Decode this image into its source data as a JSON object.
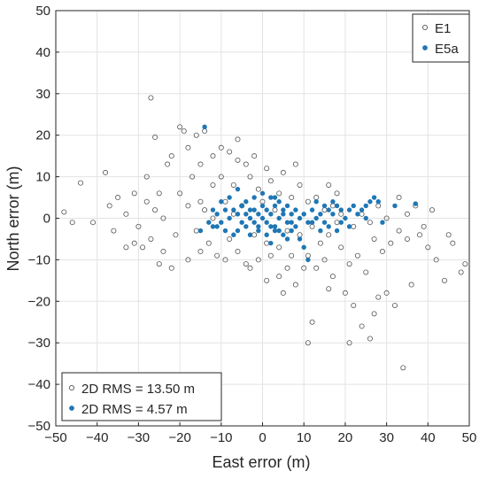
{
  "chart_data": {
    "type": "scatter",
    "title": "",
    "xlabel": "East error (m)",
    "ylabel": "North error (m)",
    "xlim": [
      -50,
      50
    ],
    "ylim": [
      -50,
      50
    ],
    "xticks": [
      -50,
      -40,
      -30,
      -20,
      -10,
      0,
      10,
      20,
      30,
      40,
      50
    ],
    "yticks": [
      -50,
      -40,
      -30,
      -20,
      -10,
      0,
      10,
      20,
      30,
      40,
      50
    ],
    "grid": true,
    "legend_position": "top-right",
    "rms_legend_position": "bottom-left",
    "series": [
      {
        "name": "E1",
        "marker": "open-circle",
        "color": "#555555",
        "rms_label": "2D RMS = 13.50 m",
        "points": [
          [
            -27,
            29
          ],
          [
            -26,
            19.5
          ],
          [
            -48,
            1.5
          ],
          [
            -44,
            8.5
          ],
          [
            -41,
            -1
          ],
          [
            -46,
            -1
          ],
          [
            -37,
            3
          ],
          [
            -38,
            11
          ],
          [
            -36,
            -3
          ],
          [
            -31,
            -6
          ],
          [
            -29,
            -7
          ],
          [
            -25,
            -11
          ],
          [
            -22,
            -12
          ],
          [
            -24,
            -8
          ],
          [
            -31,
            6
          ],
          [
            -28,
            4
          ],
          [
            -26,
            2
          ],
          [
            -33,
            1
          ],
          [
            -20,
            22
          ],
          [
            -19,
            21
          ],
          [
            -16,
            20
          ],
          [
            -14,
            21
          ],
          [
            -18,
            17
          ],
          [
            -22,
            15
          ],
          [
            -23,
            13
          ],
          [
            -15,
            13
          ],
          [
            -12,
            15
          ],
          [
            -10,
            17
          ],
          [
            -8,
            16
          ],
          [
            -6,
            14
          ],
          [
            -4,
            13
          ],
          [
            -17,
            10
          ],
          [
            -12,
            8
          ],
          [
            -20,
            6
          ],
          [
            -18,
            3
          ],
          [
            -15,
            4
          ],
          [
            -10,
            10
          ],
          [
            -7,
            8
          ],
          [
            -3,
            10
          ],
          [
            -1,
            7
          ],
          [
            2,
            9
          ],
          [
            4,
            6
          ],
          [
            7,
            5
          ],
          [
            9,
            8
          ],
          [
            11,
            4
          ],
          [
            13,
            5
          ],
          [
            15,
            2
          ],
          [
            17,
            3
          ],
          [
            19,
            1
          ],
          [
            -13,
            -6
          ],
          [
            -11,
            -9
          ],
          [
            -8,
            -5
          ],
          [
            -6,
            -8
          ],
          [
            -4,
            -11
          ],
          [
            -1,
            -10
          ],
          [
            2,
            -9
          ],
          [
            4,
            -14
          ],
          [
            6,
            -12
          ],
          [
            8,
            -16
          ],
          [
            11,
            -9
          ],
          [
            13,
            -12
          ],
          [
            15,
            -10
          ],
          [
            17,
            -14
          ],
          [
            19,
            -7
          ],
          [
            21,
            -11
          ],
          [
            23,
            -9
          ],
          [
            25,
            -13
          ],
          [
            27,
            -5
          ],
          [
            29,
            -8
          ],
          [
            31,
            -6
          ],
          [
            33,
            -3
          ],
          [
            35,
            -5
          ],
          [
            20,
            -18
          ],
          [
            22,
            -21
          ],
          [
            24,
            -26
          ],
          [
            27,
            -23
          ],
          [
            30,
            -18
          ],
          [
            26,
            -29
          ],
          [
            21,
            -30
          ],
          [
            34,
            -36
          ],
          [
            12,
            -25
          ],
          [
            11,
            -30
          ],
          [
            16,
            -17
          ],
          [
            39,
            -2
          ],
          [
            42,
            -10
          ],
          [
            45,
            -4
          ],
          [
            46,
            -6
          ],
          [
            48,
            -13
          ],
          [
            49,
            -11
          ],
          [
            44,
            -15
          ],
          [
            37,
            3
          ],
          [
            41,
            2
          ],
          [
            32,
            -21
          ],
          [
            36,
            -16
          ],
          [
            28,
            -19
          ],
          [
            -3,
            -12
          ],
          [
            5,
            -18
          ],
          [
            1,
            -15
          ],
          [
            -9,
            -10
          ],
          [
            -16,
            -3
          ],
          [
            -14,
            2
          ],
          [
            -21,
            -4
          ],
          [
            -24,
            0
          ],
          [
            -9,
            4
          ],
          [
            -5,
            3
          ],
          [
            0,
            4
          ],
          [
            3,
            2
          ],
          [
            6,
            -3
          ],
          [
            9,
            -4
          ],
          [
            12,
            -2
          ],
          [
            14,
            -6
          ],
          [
            16,
            -4
          ],
          [
            18,
            -1
          ],
          [
            22,
            -2
          ],
          [
            24,
            1
          ],
          [
            26,
            -1
          ],
          [
            -12,
            0
          ],
          [
            -7,
            1
          ],
          [
            -2,
            -4
          ],
          [
            1,
            -6
          ],
          [
            4,
            -7
          ],
          [
            7,
            -9
          ],
          [
            10,
            -12
          ],
          [
            -18,
            -10
          ],
          [
            -15,
            -8
          ],
          [
            -27,
            -5
          ],
          [
            -30,
            -2
          ],
          [
            -33,
            -7
          ],
          [
            -35,
            5
          ],
          [
            -28,
            10
          ],
          [
            -25,
            6
          ],
          [
            28,
            3
          ],
          [
            30,
            0
          ],
          [
            33,
            5
          ],
          [
            35,
            1
          ],
          [
            38,
            -4
          ],
          [
            40,
            -7
          ],
          [
            18,
            6
          ],
          [
            16,
            8
          ],
          [
            -6,
            19
          ],
          [
            -2,
            15
          ],
          [
            1,
            12
          ],
          [
            5,
            11
          ],
          [
            8,
            13
          ]
        ]
      },
      {
        "name": "E5a",
        "marker": "filled-dot",
        "color": "#1f77b4",
        "rms_label": "2D RMS = 4.57 m",
        "points": [
          [
            -14,
            22
          ],
          [
            -6,
            7
          ],
          [
            -10,
            4
          ],
          [
            -8,
            5
          ],
          [
            -12,
            2
          ],
          [
            -15,
            -3
          ],
          [
            -11,
            -2
          ],
          [
            -9,
            -3
          ],
          [
            -13,
            -1
          ],
          [
            -7,
            -4
          ],
          [
            -6,
            1
          ],
          [
            -5,
            3
          ],
          [
            -4,
            -2
          ],
          [
            -3,
            2
          ],
          [
            -2,
            -1
          ],
          [
            -1,
            1
          ],
          [
            0,
            0
          ],
          [
            1,
            -1
          ],
          [
            2,
            1
          ],
          [
            3,
            -2
          ],
          [
            4,
            0
          ],
          [
            5,
            2
          ],
          [
            6,
            -1
          ],
          [
            7,
            1
          ],
          [
            8,
            -2
          ],
          [
            9,
            0
          ],
          [
            10,
            1
          ],
          [
            11,
            -1
          ],
          [
            12,
            2
          ],
          [
            13,
            0
          ],
          [
            14,
            1
          ],
          [
            15,
            3
          ],
          [
            16,
            2
          ],
          [
            17,
            1
          ],
          [
            18,
            3
          ],
          [
            19,
            2
          ],
          [
            20,
            0
          ],
          [
            21,
            2
          ],
          [
            22,
            3
          ],
          [
            23,
            1
          ],
          [
            24,
            2
          ],
          [
            25,
            0
          ],
          [
            26,
            4
          ],
          [
            27,
            5
          ],
          [
            25,
            3
          ],
          [
            28,
            4
          ],
          [
            29,
            -1
          ],
          [
            32,
            3
          ],
          [
            37,
            3.5
          ],
          [
            -2,
            5
          ],
          [
            0,
            6
          ],
          [
            2,
            5
          ],
          [
            4,
            4
          ],
          [
            -4,
            4
          ],
          [
            -3,
            -4
          ],
          [
            -1,
            -3
          ],
          [
            1,
            -4
          ],
          [
            3,
            -3
          ],
          [
            5,
            -4
          ],
          [
            7,
            -3
          ],
          [
            9,
            -5
          ],
          [
            11,
            -10
          ],
          [
            10,
            -7
          ],
          [
            2,
            -6
          ],
          [
            -8,
            0
          ],
          [
            -9,
            2
          ],
          [
            -10,
            -1
          ],
          [
            -11,
            1
          ],
          [
            -12,
            -2
          ],
          [
            -5,
            -1
          ],
          [
            -4,
            1
          ],
          [
            -3,
            0
          ],
          [
            -2,
            2
          ],
          [
            -1,
            -2
          ],
          [
            0,
            3
          ],
          [
            1,
            2
          ],
          [
            2,
            -2
          ],
          [
            3,
            3
          ],
          [
            4,
            -3
          ],
          [
            5,
            1
          ],
          [
            6,
            3
          ],
          [
            7,
            -1
          ],
          [
            8,
            2
          ],
          [
            6,
            -5
          ],
          [
            3,
            5
          ],
          [
            -6,
            -3
          ],
          [
            -7,
            2
          ],
          [
            12,
            -1
          ],
          [
            14,
            -3
          ],
          [
            15,
            -1
          ],
          [
            13,
            4
          ],
          [
            19,
            -1
          ],
          [
            18,
            -3
          ],
          [
            21,
            -2
          ],
          [
            17,
            4
          ],
          [
            16,
            -2
          ]
        ]
      }
    ]
  }
}
